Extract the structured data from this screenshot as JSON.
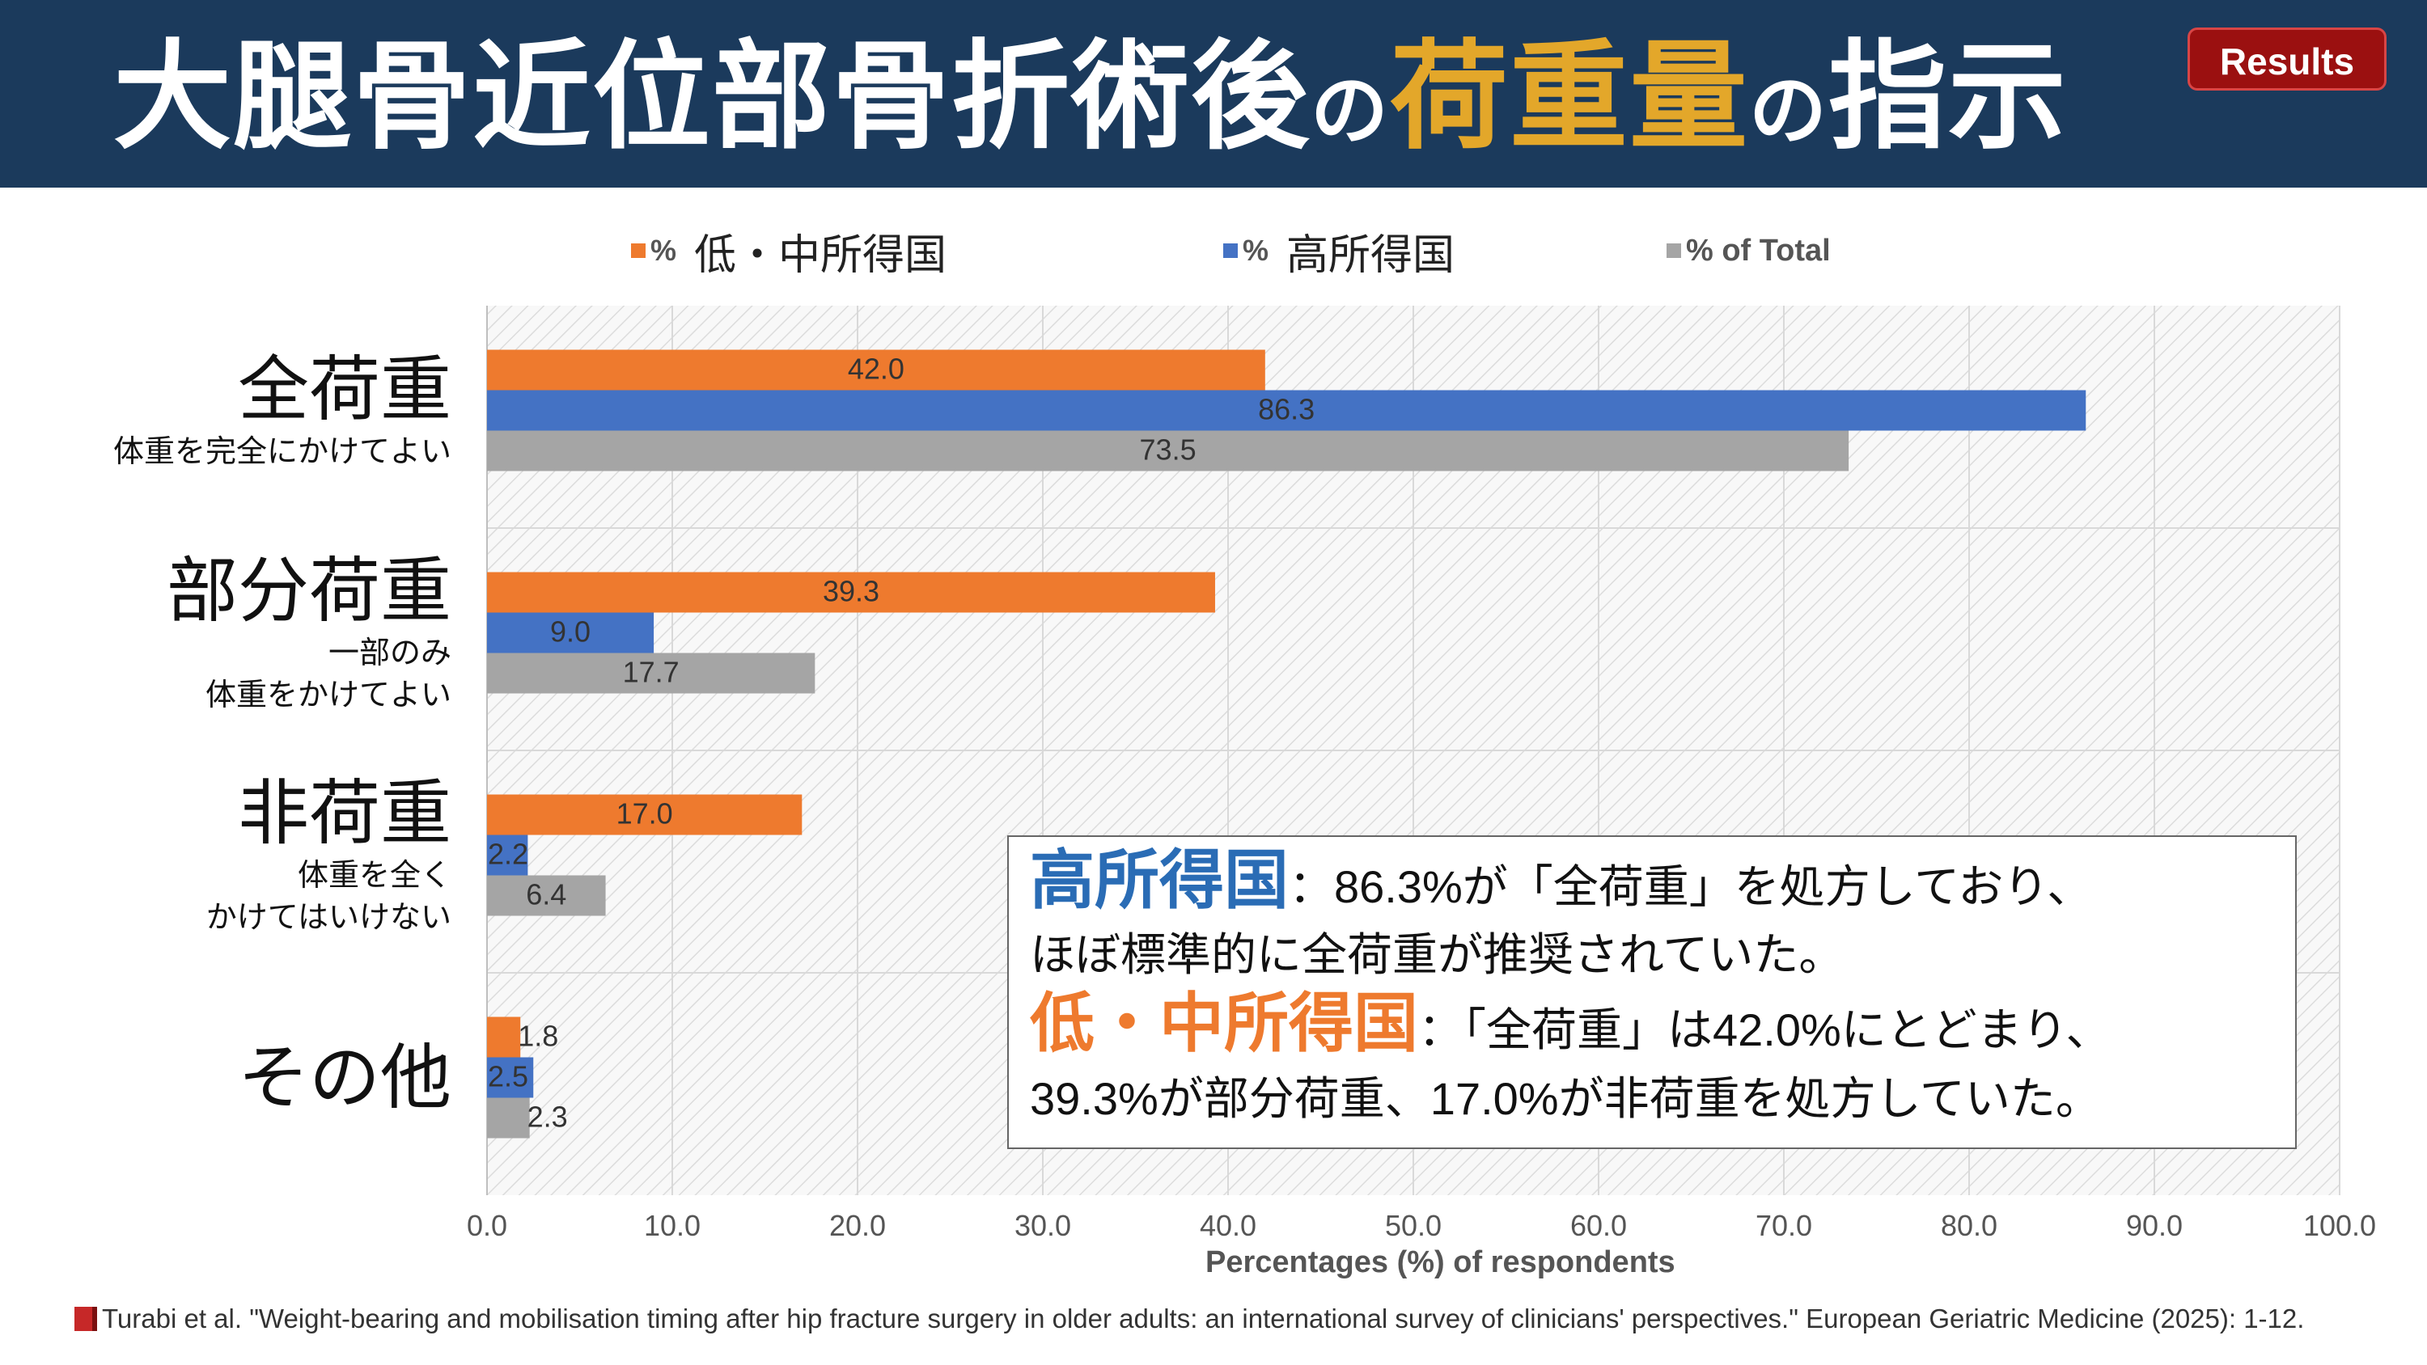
{
  "header": {
    "title_part1": "大腿骨近位部骨折術後",
    "title_no": "の",
    "title_highlight": "荷重量",
    "title_part2": "の",
    "title_part3": "指示",
    "badge": "Results"
  },
  "legend": {
    "items": [
      {
        "pct": "%",
        "name": "低・中所得国",
        "color": "#ee7a2e"
      },
      {
        "pct": "%",
        "name": "高所得国",
        "color": "#4472c4"
      },
      {
        "pct": "",
        "name": "% of Total",
        "color": "#a5a5a5"
      }
    ]
  },
  "chart_data": {
    "type": "bar",
    "orientation": "horizontal",
    "categories": [
      {
        "main": "全荷重",
        "sub": [
          "体重を完全にかけてよい"
        ]
      },
      {
        "main": "部分荷重",
        "sub": [
          "一部のみ",
          "体重をかけてよい"
        ]
      },
      {
        "main": "非荷重",
        "sub": [
          "体重を全く",
          "かけてはいけない"
        ]
      },
      {
        "main": "その他",
        "sub": []
      }
    ],
    "series": [
      {
        "name": "% 低・中所得国",
        "color": "#ee7a2e",
        "values": [
          42.0,
          39.3,
          17.0,
          1.8
        ],
        "labels": [
          "42.0",
          "39.3",
          "17.0",
          "1.8"
        ]
      },
      {
        "name": "% 高所得国",
        "color": "#4472c4",
        "values": [
          86.3,
          9.0,
          2.2,
          2.5
        ],
        "labels": [
          "86.3",
          "9.0",
          "2.2",
          "2.5"
        ]
      },
      {
        "name": "% of Total",
        "color": "#a5a5a5",
        "values": [
          73.5,
          17.7,
          6.4,
          2.3
        ],
        "labels": [
          "73.5",
          "17.7",
          "6.4",
          "2.3"
        ]
      }
    ],
    "xlim": [
      0,
      100
    ],
    "xticks": [
      "0.0",
      "10.0",
      "20.0",
      "30.0",
      "40.0",
      "50.0",
      "60.0",
      "70.0",
      "80.0",
      "90.0",
      "100.0"
    ],
    "xlabel": "Percentages (%) of respondents",
    "grid": true
  },
  "note": {
    "l1_head": "高所得国",
    "l1_colon": "：",
    "l1_num": "86.3%",
    "l1_rest": "が「全荷重」を処方しており、",
    "l2": "ほぼ標準的に全荷重が推奨されていた。",
    "l3_head": "低・中所得国",
    "l3_colon": "：「全荷重」は",
    "l3_num": "42.0%",
    "l3_rest": "にとどまり、",
    "l4_num1": "39.3%",
    "l4_mid": "が部分荷重、",
    "l4_num2": "17.0%",
    "l4_rest": "が非荷重を処方していた。"
  },
  "citation": "Turabi et al. \"Weight-bearing and mobilisation timing after hip fracture surgery in older adults: an international survey of clinicians' perspectives.\" European Geriatric Medicine (2025): 1-12."
}
